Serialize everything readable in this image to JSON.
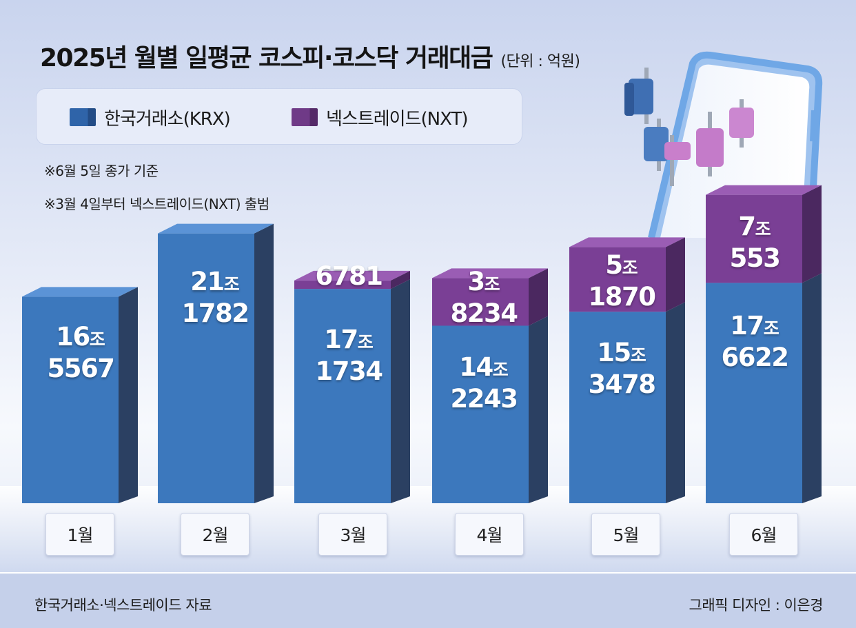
{
  "header": {
    "title": "2025년 월별 일평균 코스피·코스닥 거래대금",
    "unit": "(단위 : 억원)"
  },
  "legend": {
    "krx": "한국거래소(KRX)",
    "nxt": "넥스트레이드(NXT)"
  },
  "notes": [
    "※6월 5일 종가 기준",
    "※3월 4일부터 넥스트레이드(NXT) 출범"
  ],
  "footer": {
    "source": "한국거래소·넥스트레이드 자료",
    "credit": "그래픽 디자인 : 이은경"
  },
  "colors": {
    "krx_front": "#3c78bd",
    "krx_side": "#2b4062",
    "krx_top": "#5b93d6",
    "nxt_front": "#7a3f95",
    "nxt_side": "#4b2860",
    "nxt_top": "#9a5db4",
    "background": "#dce3f5"
  },
  "labels": {
    "m1": {
      "krx_jo": "16",
      "krx_rest": "5567"
    },
    "m2": {
      "krx_jo": "21",
      "krx_rest": "1782"
    },
    "m3": {
      "krx_jo": "17",
      "krx_rest": "1734",
      "nxt_rest": "6781"
    },
    "m4": {
      "krx_jo": "14",
      "krx_rest": "2243",
      "nxt_jo": "3",
      "nxt_rest": "8234"
    },
    "m5": {
      "krx_jo": "15",
      "krx_rest": "3478",
      "nxt_jo": "5",
      "nxt_rest": "1870"
    },
    "m6": {
      "krx_jo": "17",
      "krx_rest": "6622",
      "nxt_jo": "7",
      "nxt_rest": "553"
    },
    "jo": "조"
  },
  "chart_data": {
    "type": "bar",
    "stacked": true,
    "title": "2025년 월별 일평균 코스피·코스닥 거래대금",
    "unit": "억원",
    "categories": [
      "1월",
      "2월",
      "3월",
      "4월",
      "5월",
      "6월"
    ],
    "series": [
      {
        "name": "한국거래소(KRX)",
        "values": [
          165567,
          211782,
          171734,
          142243,
          153478,
          176622
        ]
      },
      {
        "name": "넥스트레이드(NXT)",
        "values": [
          0,
          0,
          6781,
          38234,
          51870,
          70553
        ]
      }
    ]
  }
}
